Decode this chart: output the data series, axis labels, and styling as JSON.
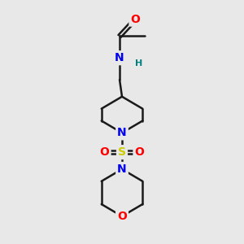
{
  "background_color": "#e8e8e8",
  "bond_color": "#1a1a1a",
  "atom_colors": {
    "O": "#ff0000",
    "N": "#0000ee",
    "S": "#cccc00",
    "H": "#008080",
    "C": "#1a1a1a"
  },
  "figsize": [
    3.0,
    3.0
  ],
  "dpi": 100,
  "lw": 1.8,
  "fontsize": 10
}
